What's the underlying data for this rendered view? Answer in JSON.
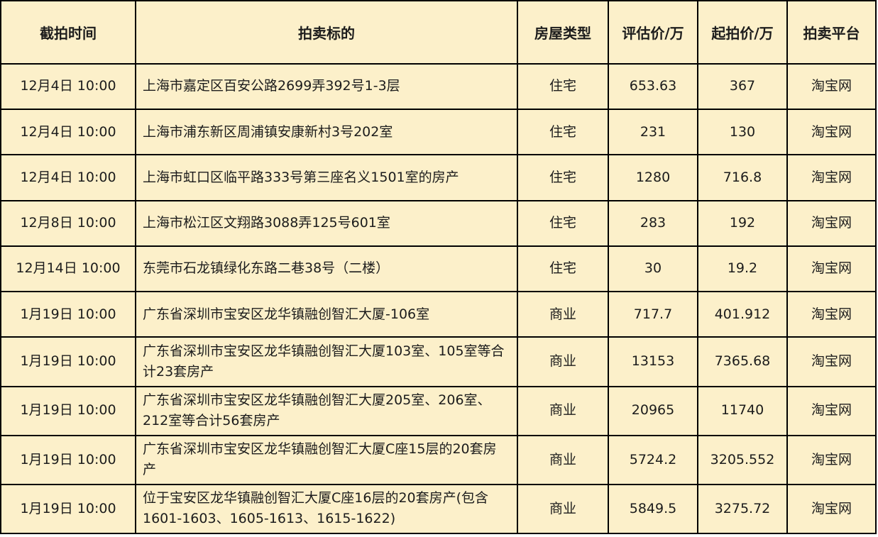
{
  "table": {
    "columns": [
      {
        "key": "time",
        "label": "截拍时间"
      },
      {
        "key": "subject",
        "label": "拍卖标的"
      },
      {
        "key": "type",
        "label": "房屋类型"
      },
      {
        "key": "appraisal",
        "label": "评估价/万"
      },
      {
        "key": "start_price",
        "label": "起拍价/万"
      },
      {
        "key": "platform",
        "label": "拍卖平台"
      }
    ],
    "rows": [
      {
        "time": "12月4日 10:00",
        "subject": "上海市嘉定区百安公路2699弄392号1-3层",
        "type": "住宅",
        "appraisal": "653.63",
        "start_price": "367",
        "platform": "淘宝网"
      },
      {
        "time": "12月4日 10:00",
        "subject": "上海市浦东新区周浦镇安康新村3号202室",
        "type": "住宅",
        "appraisal": "231",
        "start_price": "130",
        "platform": "淘宝网"
      },
      {
        "time": "12月4日 10:00",
        "subject": "上海市虹口区临平路333号第三座名义1501室的房产",
        "type": "住宅",
        "appraisal": "1280",
        "start_price": "716.8",
        "platform": "淘宝网"
      },
      {
        "time": "12月8日 10:00",
        "subject": "上海市松江区文翔路3088弄125号601室",
        "type": "住宅",
        "appraisal": "283",
        "start_price": "192",
        "platform": "淘宝网"
      },
      {
        "time": "12月14日 10:00",
        "subject": "东莞市石龙镇绿化东路二巷38号（二楼）",
        "type": "住宅",
        "appraisal": "30",
        "start_price": "19.2",
        "platform": "淘宝网"
      },
      {
        "time": "1月19日 10:00",
        "subject": "广东省深圳市宝安区龙华镇融创智汇大厦-106室",
        "type": "商业",
        "appraisal": "717.7",
        "start_price": "401.912",
        "platform": "淘宝网"
      },
      {
        "time": "1月19日 10:00",
        "subject": "广东省深圳市宝安区龙华镇融创智汇大厦103室、105室等合计23套房产",
        "type": "商业",
        "appraisal": "13153",
        "start_price": "7365.68",
        "platform": "淘宝网"
      },
      {
        "time": "1月19日 10:00",
        "subject": "广东省深圳市宝安区龙华镇融创智汇大厦205室、206室、212室等合计56套房产",
        "type": "商业",
        "appraisal": "20965",
        "start_price": "11740",
        "platform": "淘宝网"
      },
      {
        "time": "1月19日 10:00",
        "subject": "广东省深圳市宝安区龙华镇融创智汇大厦C座15层的20套房产",
        "type": "商业",
        "appraisal": "5724.2",
        "start_price": "3205.552",
        "platform": "淘宝网"
      },
      {
        "time": "1月19日 10:00",
        "subject": "位于宝安区龙华镇融创智汇大厦C座16层的20套房产(包含1601-1603、1605-1613、1615-1622)",
        "type": "商业",
        "appraisal": "5849.5",
        "start_price": "3275.72",
        "platform": "淘宝网"
      }
    ],
    "colors": {
      "background": "#FCF0CA",
      "border": "#000000",
      "text": "#1C1C1C"
    }
  }
}
